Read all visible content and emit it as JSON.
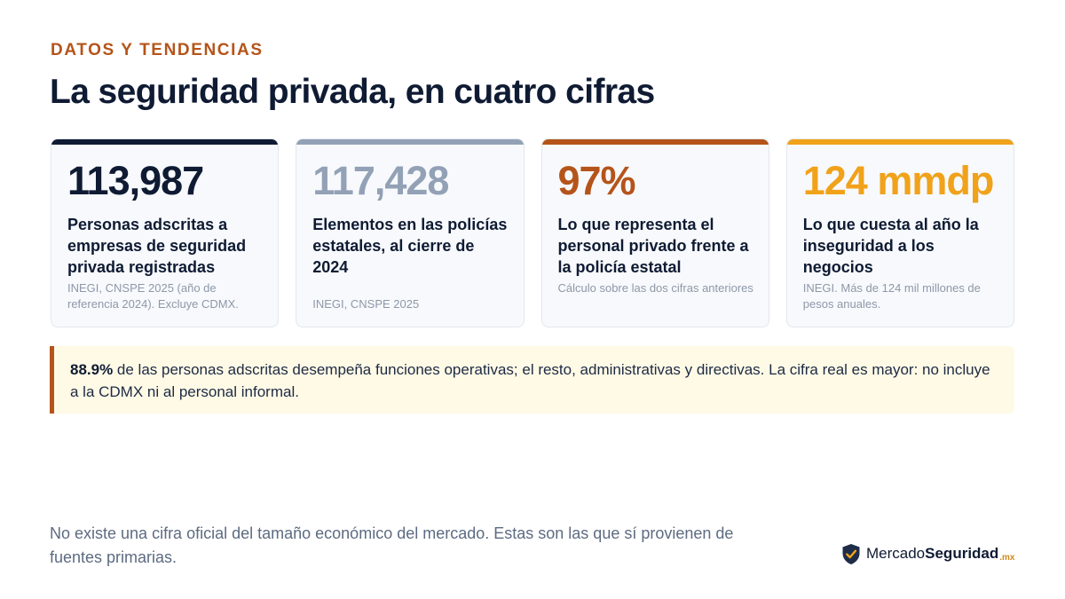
{
  "header": {
    "eyebrow": "DATOS Y TENDENCIAS",
    "title": "La seguridad privada, en cuatro cifras"
  },
  "cards": [
    {
      "value": "113,987",
      "label": "Personas adscritas a empresas de seguridad privada registradas",
      "source": "INEGI, CNSPE 2025 (año de referencia 2024). Excluye CDMX.",
      "accent": "#0f1b33",
      "value_color": "#0f1b33"
    },
    {
      "value": "117,428",
      "label": "Elementos en las policías estatales, al cierre de 2024",
      "source": "INEGI, CNSPE 2025",
      "accent": "#93a1b6",
      "value_color": "#93a1b6"
    },
    {
      "value": "97%",
      "label": "Lo que representa el personal privado frente a la policía estatal",
      "source": "Cálculo sobre las dos cifras anteriores",
      "accent": "#b5541a",
      "value_color": "#b5541a"
    },
    {
      "value": "124 mmdp",
      "label": "Lo que cuesta al año la inseguridad a los negocios",
      "source": "INEGI. Más de 124 mil millones de pesos anuales.",
      "accent": "#f0a21a",
      "value_color": "#f0a21a"
    }
  ],
  "note": {
    "highlight": "88.9%",
    "text": " de las personas adscritas desempeña funciones operativas; el resto, administrativas y directivas. La cifra real es mayor: no incluye a la CDMX ni al personal informal."
  },
  "footer": {
    "text": "No existe una cifra oficial del tamaño económico del mercado. Estas son las que sí provienen de fuentes primarias."
  },
  "brand": {
    "name_regular": "Mercado",
    "name_bold": "Seguridad",
    "tld": ".mx",
    "icon": "shield-check-icon"
  }
}
